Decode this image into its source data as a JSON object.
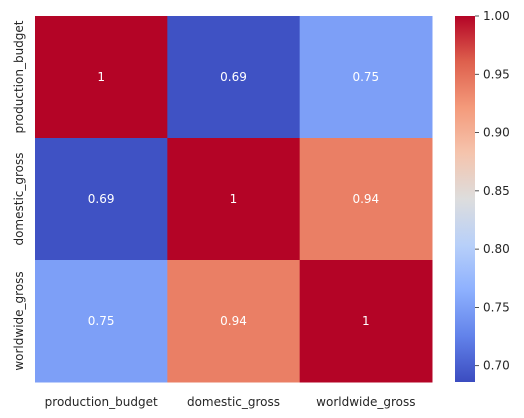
{
  "chart_data": {
    "type": "heatmap",
    "title": "",
    "xlabel": "",
    "ylabel": "",
    "x_categories": [
      "production_budget",
      "domestic_gross",
      "worldwide_gross"
    ],
    "y_categories": [
      "production_budget",
      "domestic_gross",
      "worldwide_gross"
    ],
    "values": [
      [
        1.0,
        0.69,
        0.75
      ],
      [
        0.69,
        1.0,
        0.94
      ],
      [
        0.75,
        0.94,
        1.0
      ]
    ],
    "cell_labels": [
      [
        "1",
        "0.69",
        "0.75"
      ],
      [
        "0.69",
        "1",
        "0.94"
      ],
      [
        "0.75",
        "0.94",
        "1"
      ]
    ],
    "colormap": "coolwarm",
    "colorbar": {
      "range": [
        0.686,
        1.0
      ],
      "ticks": [
        0.7,
        0.75,
        0.8,
        0.85,
        0.9,
        0.95,
        1.0
      ],
      "tick_labels": [
        "0.70",
        "0.75",
        "0.80",
        "0.85",
        "0.90",
        "0.95",
        "1.00"
      ]
    },
    "annotated": true,
    "grid": false
  }
}
